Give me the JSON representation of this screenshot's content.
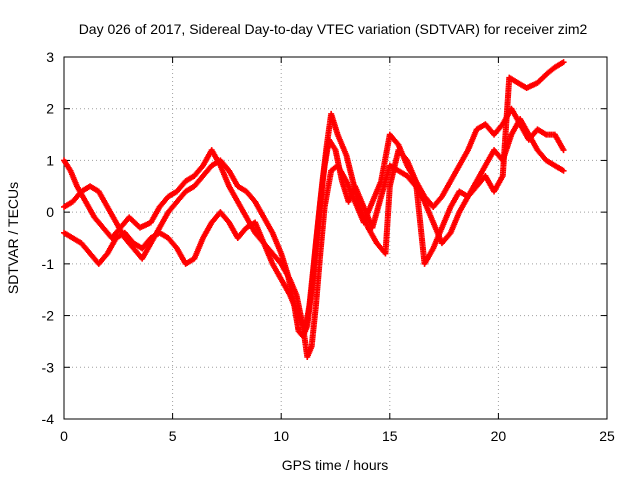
{
  "chart_data": {
    "type": "scatter",
    "title": "Day 026 of 2017, Sidereal Day-to-day VTEC variation (SDTVAR) for receiver zim2",
    "xlabel": "GPS time / hours",
    "ylabel": "SDTVAR / TECUs",
    "xlim": [
      0,
      25
    ],
    "ylim": [
      -4,
      3
    ],
    "xticks": [
      "0",
      "5",
      "10",
      "15",
      "20",
      "25"
    ],
    "yticks": [
      "-4",
      "-3",
      "-2",
      "-1",
      "0",
      "1",
      "2",
      "3"
    ],
    "grid": true,
    "marker": "+",
    "color": "#ff0000",
    "series": [
      {
        "points": [
          [
            0,
            1.0
          ],
          [
            0.3,
            0.8
          ],
          [
            0.6,
            0.5
          ],
          [
            1.0,
            0.2
          ],
          [
            1.4,
            -0.1
          ],
          [
            1.8,
            -0.3
          ],
          [
            2.2,
            -0.5
          ],
          [
            2.6,
            -0.3
          ],
          [
            3.0,
            -0.1
          ],
          [
            3.5,
            -0.3
          ],
          [
            4.0,
            -0.2
          ],
          [
            4.4,
            0.1
          ],
          [
            4.8,
            0.3
          ],
          [
            5.2,
            0.4
          ],
          [
            5.6,
            0.6
          ],
          [
            6.0,
            0.7
          ],
          [
            6.4,
            0.9
          ],
          [
            6.8,
            1.2
          ],
          [
            7.2,
            0.9
          ],
          [
            7.6,
            0.5
          ],
          [
            8.0,
            0.2
          ],
          [
            8.4,
            -0.1
          ],
          [
            8.8,
            -0.4
          ],
          [
            9.2,
            -0.6
          ],
          [
            9.6,
            -0.8
          ],
          [
            10.0,
            -1.0
          ],
          [
            10.4,
            -1.3
          ],
          [
            10.7,
            -1.6
          ],
          [
            10.9,
            -2.0
          ],
          [
            11.1,
            -2.3
          ],
          [
            11.3,
            -1.8
          ],
          [
            11.5,
            -1.0
          ],
          [
            11.7,
            -0.2
          ],
          [
            11.9,
            0.6
          ],
          [
            12.1,
            1.3
          ],
          [
            12.3,
            1.9
          ],
          [
            12.6,
            1.5
          ],
          [
            13.0,
            1.1
          ],
          [
            13.3,
            0.6
          ],
          [
            13.6,
            0.1
          ],
          [
            14.0,
            -0.3
          ],
          [
            14.4,
            -0.6
          ],
          [
            14.8,
            -0.8
          ],
          [
            15.0,
            0.5
          ],
          [
            15.4,
            1.2
          ],
          [
            15.8,
            1.0
          ],
          [
            16.2,
            0.6
          ],
          [
            16.6,
            0.3
          ],
          [
            17.0,
            0.1
          ],
          [
            17.4,
            0.3
          ],
          [
            17.8,
            0.6
          ],
          [
            18.2,
            0.9
          ],
          [
            18.6,
            1.2
          ],
          [
            19.0,
            1.6
          ],
          [
            19.4,
            1.7
          ],
          [
            19.8,
            1.5
          ],
          [
            20.2,
            1.7
          ],
          [
            20.6,
            2.0
          ],
          [
            21.0,
            1.7
          ],
          [
            21.4,
            1.4
          ],
          [
            21.8,
            1.6
          ],
          [
            22.2,
            1.5
          ],
          [
            22.6,
            1.5
          ],
          [
            23.0,
            1.2
          ]
        ]
      },
      {
        "points": [
          [
            0,
            0.1
          ],
          [
            0.4,
            0.2
          ],
          [
            0.8,
            0.4
          ],
          [
            1.2,
            0.5
          ],
          [
            1.6,
            0.4
          ],
          [
            2.0,
            0.1
          ],
          [
            2.4,
            -0.2
          ],
          [
            2.8,
            -0.5
          ],
          [
            3.2,
            -0.7
          ],
          [
            3.6,
            -0.9
          ],
          [
            4.0,
            -0.6
          ],
          [
            4.4,
            -0.3
          ],
          [
            4.8,
            0.0
          ],
          [
            5.2,
            0.2
          ],
          [
            5.6,
            0.4
          ],
          [
            6.0,
            0.5
          ],
          [
            6.4,
            0.7
          ],
          [
            6.8,
            0.9
          ],
          [
            7.2,
            1.0
          ],
          [
            7.6,
            0.8
          ],
          [
            8.0,
            0.5
          ],
          [
            8.4,
            0.4
          ],
          [
            8.8,
            0.2
          ],
          [
            9.2,
            -0.1
          ],
          [
            9.6,
            -0.4
          ],
          [
            10.0,
            -0.8
          ],
          [
            10.3,
            -1.2
          ],
          [
            10.6,
            -1.8
          ],
          [
            10.8,
            -2.3
          ],
          [
            11.0,
            -2.4
          ],
          [
            11.2,
            -2.2
          ],
          [
            11.4,
            -1.5
          ],
          [
            11.6,
            -0.6
          ],
          [
            11.8,
            0.2
          ],
          [
            12.0,
            0.9
          ],
          [
            12.2,
            1.4
          ],
          [
            12.5,
            1.2
          ],
          [
            12.8,
            0.6
          ],
          [
            13.1,
            0.2
          ],
          [
            13.4,
            0.5
          ],
          [
            13.8,
            0.1
          ],
          [
            14.2,
            -0.3
          ],
          [
            14.6,
            0.3
          ],
          [
            15.0,
            0.9
          ],
          [
            15.4,
            0.8
          ],
          [
            15.8,
            0.7
          ],
          [
            16.2,
            0.5
          ],
          [
            16.6,
            0.2
          ],
          [
            17.0,
            -0.2
          ],
          [
            17.4,
            -0.6
          ],
          [
            17.8,
            -0.4
          ],
          [
            18.2,
            0.0
          ],
          [
            18.6,
            0.3
          ],
          [
            19.0,
            0.6
          ],
          [
            19.4,
            0.9
          ],
          [
            19.8,
            1.2
          ],
          [
            20.2,
            1.0
          ],
          [
            20.6,
            1.5
          ],
          [
            21.0,
            1.8
          ],
          [
            21.4,
            1.5
          ],
          [
            21.8,
            1.2
          ],
          [
            22.2,
            1.0
          ],
          [
            22.6,
            0.9
          ],
          [
            23.0,
            0.8
          ]
        ]
      },
      {
        "points": [
          [
            0,
            -0.4
          ],
          [
            0.4,
            -0.5
          ],
          [
            0.8,
            -0.6
          ],
          [
            1.2,
            -0.8
          ],
          [
            1.6,
            -1.0
          ],
          [
            2.0,
            -0.8
          ],
          [
            2.4,
            -0.5
          ],
          [
            2.8,
            -0.4
          ],
          [
            3.2,
            -0.6
          ],
          [
            3.6,
            -0.7
          ],
          [
            4.0,
            -0.5
          ],
          [
            4.4,
            -0.4
          ],
          [
            4.8,
            -0.5
          ],
          [
            5.2,
            -0.7
          ],
          [
            5.6,
            -1.0
          ],
          [
            6.0,
            -0.9
          ],
          [
            6.4,
            -0.5
          ],
          [
            6.8,
            -0.2
          ],
          [
            7.2,
            0.0
          ],
          [
            7.6,
            -0.2
          ],
          [
            8.0,
            -0.5
          ],
          [
            8.4,
            -0.3
          ],
          [
            8.8,
            -0.2
          ],
          [
            9.2,
            -0.6
          ],
          [
            9.6,
            -1.0
          ],
          [
            10.0,
            -1.3
          ],
          [
            10.4,
            -1.6
          ],
          [
            10.8,
            -2.0
          ],
          [
            11.0,
            -2.2
          ],
          [
            11.2,
            -2.8
          ],
          [
            11.4,
            -2.6
          ],
          [
            11.6,
            -1.8
          ],
          [
            11.8,
            -0.8
          ],
          [
            12.0,
            0.1
          ],
          [
            12.3,
            0.8
          ],
          [
            12.6,
            0.9
          ],
          [
            13.0,
            0.6
          ],
          [
            13.4,
            0.2
          ],
          [
            13.8,
            -0.2
          ],
          [
            14.2,
            0.2
          ],
          [
            14.6,
            0.6
          ],
          [
            15.0,
            1.5
          ],
          [
            15.4,
            1.3
          ],
          [
            15.8,
            0.9
          ],
          [
            16.2,
            0.6
          ],
          [
            16.6,
            -1.0
          ],
          [
            17.0,
            -0.7
          ],
          [
            17.4,
            -0.3
          ],
          [
            17.8,
            0.1
          ],
          [
            18.2,
            0.4
          ],
          [
            18.6,
            0.3
          ],
          [
            19.0,
            0.5
          ],
          [
            19.4,
            0.7
          ],
          [
            19.8,
            0.4
          ],
          [
            20.2,
            0.7
          ],
          [
            20.5,
            2.6
          ],
          [
            20.9,
            2.5
          ],
          [
            21.3,
            2.4
          ],
          [
            21.8,
            2.5
          ],
          [
            22.3,
            2.7
          ],
          [
            22.6,
            2.8
          ],
          [
            23.0,
            2.9
          ]
        ]
      }
    ]
  }
}
